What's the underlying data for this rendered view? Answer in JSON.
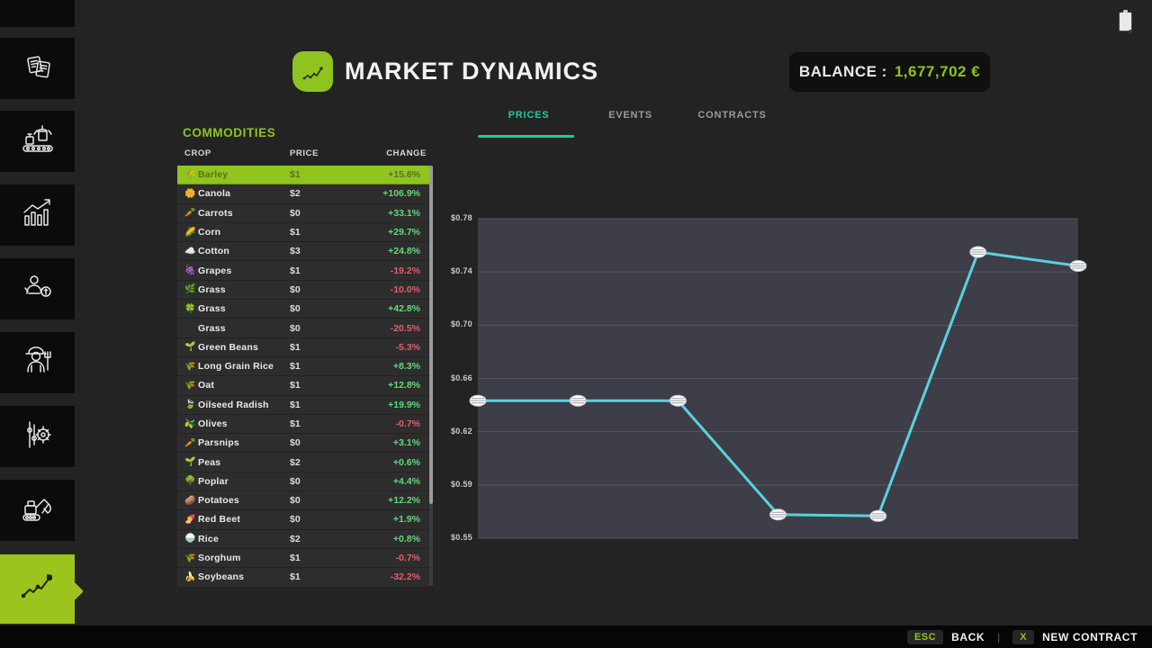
{
  "header": {
    "title": "MARKET DYNAMICS"
  },
  "balance": {
    "label": "BALANCE :",
    "value": "1,677,702 €"
  },
  "tabs": {
    "items": [
      {
        "label": "PRICES",
        "active": true
      },
      {
        "label": "EVENTS",
        "active": false
      },
      {
        "label": "CONTRACTS",
        "active": false
      }
    ]
  },
  "sidebar": {
    "items": [
      {
        "name": "animals",
        "icon": "animals-icon",
        "active": false,
        "partial": true
      },
      {
        "name": "documents",
        "icon": "documents-icon",
        "active": false
      },
      {
        "name": "production",
        "icon": "production-icon",
        "active": false
      },
      {
        "name": "statistics",
        "icon": "statistics-icon",
        "active": false
      },
      {
        "name": "sales",
        "icon": "sales-icon",
        "active": false
      },
      {
        "name": "farmer",
        "icon": "farmer-icon",
        "active": false
      },
      {
        "name": "settings",
        "icon": "settings-icon",
        "active": false
      },
      {
        "name": "construction",
        "icon": "construction-icon",
        "active": false
      },
      {
        "name": "market-dynamics",
        "icon": "market-trend-icon",
        "active": true
      }
    ]
  },
  "commodities": {
    "section_title": "COMMODITIES",
    "columns": [
      "CROP",
      "PRICE",
      "CHANGE"
    ],
    "rows": [
      {
        "icon": "🌾",
        "crop": "Barley",
        "price": "$1",
        "change": "+15.6%",
        "selected": true
      },
      {
        "icon": "🌼",
        "crop": "Canola",
        "price": "$2",
        "change": "+106.9%",
        "selected": false
      },
      {
        "icon": "🥕",
        "crop": "Carrots",
        "price": "$0",
        "change": "+33.1%",
        "selected": false
      },
      {
        "icon": "🌽",
        "crop": "Corn",
        "price": "$1",
        "change": "+29.7%",
        "selected": false
      },
      {
        "icon": "☁️",
        "crop": "Cotton",
        "price": "$3",
        "change": "+24.8%",
        "selected": false
      },
      {
        "icon": "🍇",
        "crop": "Grapes",
        "price": "$1",
        "change": "-19.2%",
        "selected": false
      },
      {
        "icon": "🌿",
        "crop": "Grass",
        "price": "$0",
        "change": "-10.0%",
        "selected": false
      },
      {
        "icon": "🍀",
        "crop": "Grass",
        "price": "$0",
        "change": "+42.8%",
        "selected": false
      },
      {
        "icon": "",
        "crop": "Grass",
        "price": "$0",
        "change": "-20.5%",
        "selected": false
      },
      {
        "icon": "🌱",
        "crop": "Green Beans",
        "price": "$1",
        "change": "-5.3%",
        "selected": false
      },
      {
        "icon": "🌾",
        "crop": "Long Grain Rice",
        "price": "$1",
        "change": "+8.3%",
        "selected": false
      },
      {
        "icon": "🌾",
        "crop": "Oat",
        "price": "$1",
        "change": "+12.8%",
        "selected": false
      },
      {
        "icon": "🍃",
        "crop": "Oilseed Radish",
        "price": "$1",
        "change": "+19.9%",
        "selected": false
      },
      {
        "icon": "🫒",
        "crop": "Olives",
        "price": "$1",
        "change": "-0.7%",
        "selected": false
      },
      {
        "icon": "🥕",
        "crop": "Parsnips",
        "price": "$0",
        "change": "+3.1%",
        "selected": false
      },
      {
        "icon": "🌱",
        "crop": "Peas",
        "price": "$2",
        "change": "+0.6%",
        "selected": false
      },
      {
        "icon": "🌳",
        "crop": "Poplar",
        "price": "$0",
        "change": "+4.4%",
        "selected": false
      },
      {
        "icon": "🥔",
        "crop": "Potatoes",
        "price": "$0",
        "change": "+12.2%",
        "selected": false
      },
      {
        "icon": "🍠",
        "crop": "Red Beet",
        "price": "$0",
        "change": "+1.9%",
        "selected": false
      },
      {
        "icon": "🍚",
        "crop": "Rice",
        "price": "$2",
        "change": "+0.8%",
        "selected": false
      },
      {
        "icon": "🌾",
        "crop": "Sorghum",
        "price": "$1",
        "change": "-0.7%",
        "selected": false
      },
      {
        "icon": "🍌",
        "crop": "Soybeans",
        "price": "$1",
        "change": "-32.2%",
        "selected": false
      }
    ]
  },
  "chart_data": {
    "type": "line",
    "title": "Barley price history",
    "x": [
      1,
      2,
      3,
      4,
      5,
      6,
      7
    ],
    "values": [
      0.649,
      0.649,
      0.649,
      0.567,
      0.566,
      0.756,
      0.746
    ],
    "y_ticks": [
      "$0.78",
      "$0.74",
      "$0.70",
      "$0.66",
      "$0.62",
      "$0.59",
      "$0.55"
    ],
    "ylim": [
      0.55,
      0.78
    ],
    "grid": true,
    "legend": "none",
    "line_color": "#5ad1df",
    "marker_color": "#ffffff"
  },
  "footer": {
    "esc_key": "ESC",
    "back_label": "BACK",
    "separator": "|",
    "x_key": "X",
    "new_contract_label": "NEW CONTRACT"
  },
  "colors": {
    "accent_green": "#8fc31f",
    "active_tab_teal": "#22c79c",
    "positive": "#62d97c",
    "negative": "#e0606c",
    "chart_bg": "#3d3e48",
    "row_bg": "#2d2d2d",
    "selected_row_bg": "#90c41e"
  }
}
